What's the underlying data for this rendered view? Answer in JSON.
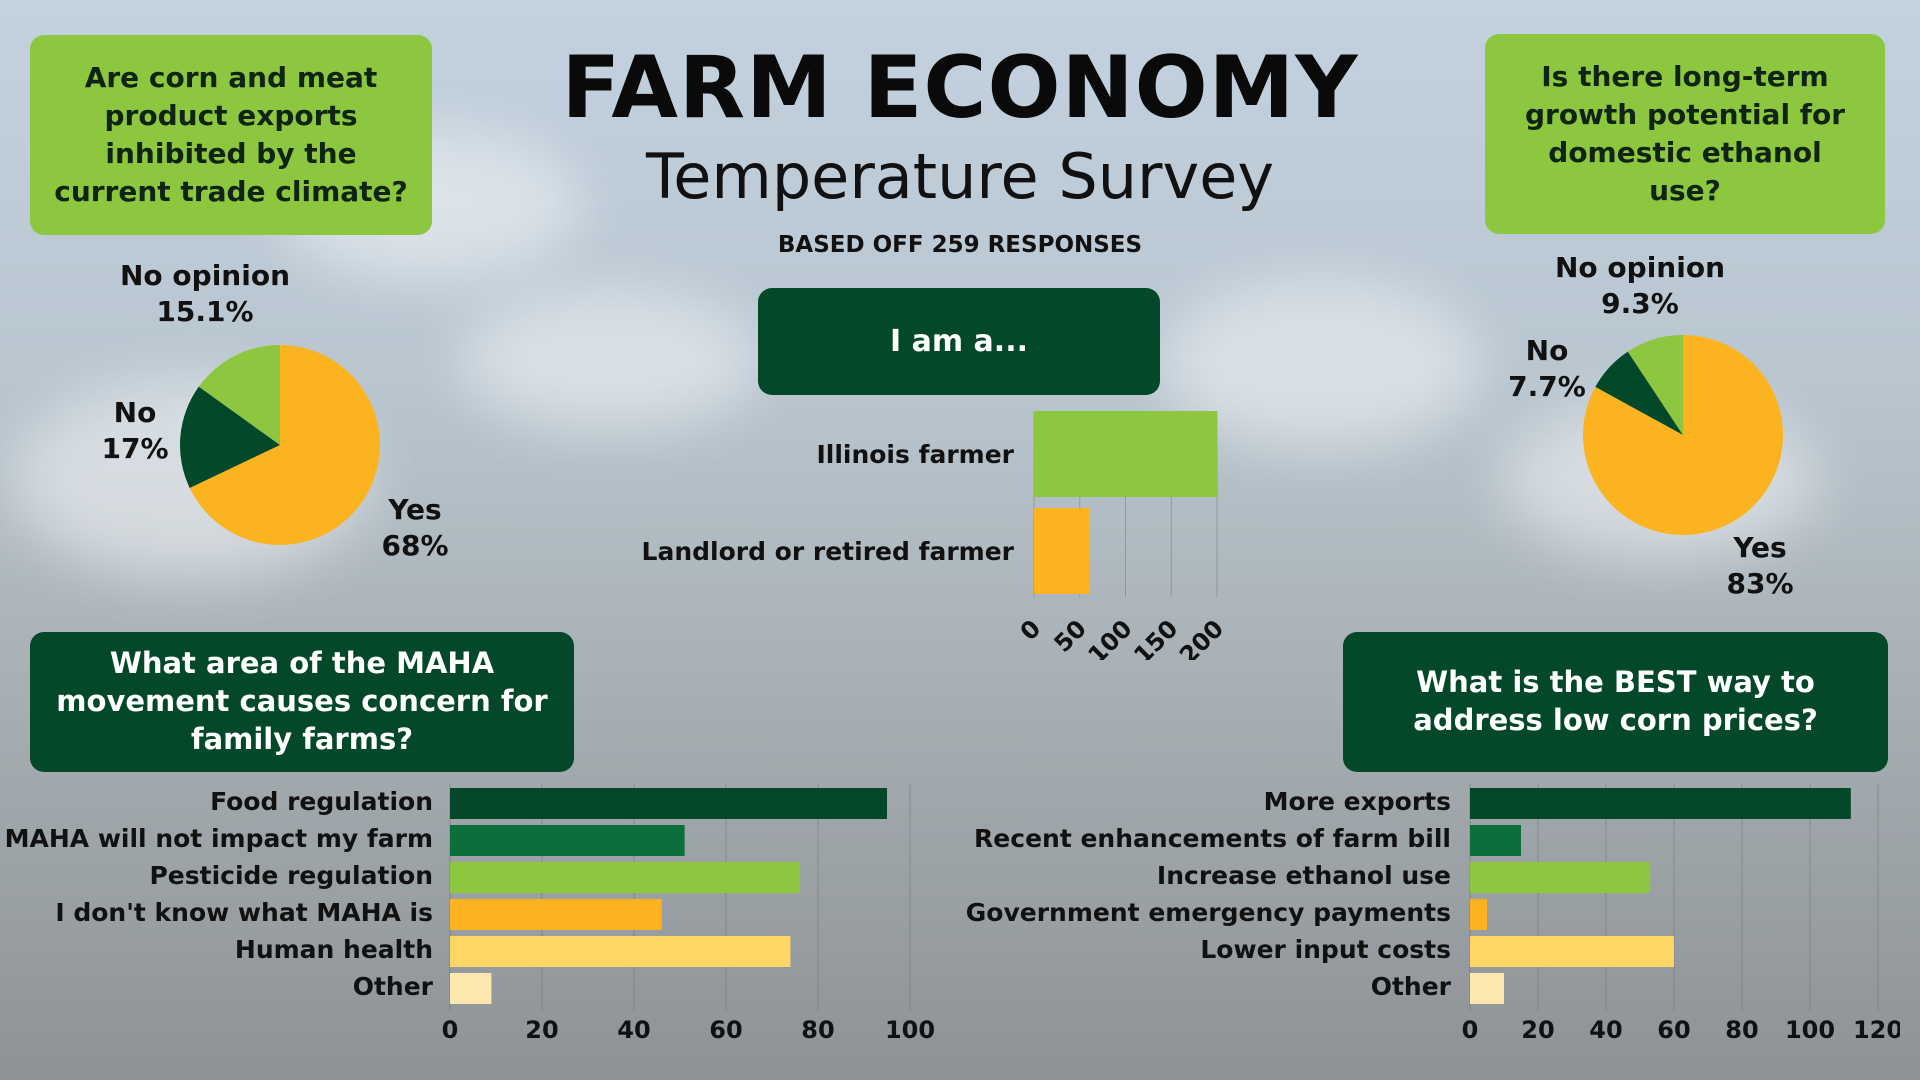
{
  "header": {
    "title": "FARM ECONOMY",
    "subtitle": "Temperature Survey",
    "responses_note": "BASED OFF 259 RESPONSES"
  },
  "colors": {
    "dark_green": "#04482a",
    "mid_green": "#0b6e3b",
    "lime": "#8dc63f",
    "orange": "#fbb41f",
    "light_yellow": "#ffd566",
    "cream": "#fde7b0"
  },
  "chart_data": [
    {
      "id": "exports",
      "type": "pie",
      "title": "Are corn and meat product exports inhibited by the current trade climate?",
      "slices": [
        {
          "label": "Yes",
          "value_text": "68%",
          "value": 68,
          "color": "#fbb41f"
        },
        {
          "label": "No",
          "value_text": "17%",
          "value": 17,
          "color": "#04482a"
        },
        {
          "label": "No opinion",
          "value_text": "15.1%",
          "value": 15.1,
          "color": "#8dc63f"
        }
      ]
    },
    {
      "id": "ethanol",
      "type": "pie",
      "title": "Is there long-term growth potential for domestic ethanol use?",
      "slices": [
        {
          "label": "Yes",
          "value_text": "83%",
          "value": 83,
          "color": "#fbb41f"
        },
        {
          "label": "No",
          "value_text": "7.7%",
          "value": 7.7,
          "color": "#04482a"
        },
        {
          "label": "No opinion",
          "value_text": "9.3%",
          "value": 9.3,
          "color": "#8dc63f"
        }
      ]
    },
    {
      "id": "iama",
      "type": "bar",
      "orientation": "horizontal",
      "title": "I am a...",
      "categories": [
        "Illinois farmer",
        "Landlord or retired farmer"
      ],
      "values": [
        200,
        61
      ],
      "colors": [
        "#8dc63f",
        "#fbb41f"
      ],
      "xlim": [
        0,
        200
      ],
      "xticks": [
        0,
        50,
        100,
        150,
        200
      ]
    },
    {
      "id": "maha",
      "type": "bar",
      "orientation": "horizontal",
      "title": "What area of the MAHA movement causes concern for family farms?",
      "categories": [
        "Food regulation",
        "MAHA will not impact my farm",
        "Pesticide regulation",
        "I don't know what MAHA is",
        "Human health",
        "Other"
      ],
      "values": [
        95,
        51,
        76,
        46,
        74,
        9
      ],
      "colors": [
        "#04482a",
        "#0b6e3b",
        "#8dc63f",
        "#fbb41f",
        "#ffd566",
        "#fde7b0"
      ],
      "xlim": [
        0,
        100
      ],
      "xticks": [
        0,
        20,
        40,
        60,
        80,
        100
      ]
    },
    {
      "id": "corn",
      "type": "bar",
      "orientation": "horizontal",
      "title": "What is the BEST way to address low corn prices?",
      "categories": [
        "More exports",
        "Recent enhancements of farm bill",
        "Increase ethanol use",
        "Government emergency payments",
        "Lower input costs",
        "Other"
      ],
      "values": [
        112,
        15,
        53,
        5,
        60,
        10
      ],
      "colors": [
        "#04482a",
        "#0b6e3b",
        "#8dc63f",
        "#fbb41f",
        "#ffd566",
        "#fde7b0"
      ],
      "xlim": [
        0,
        120
      ],
      "xticks": [
        0,
        20,
        40,
        60,
        80,
        100,
        120
      ]
    }
  ]
}
